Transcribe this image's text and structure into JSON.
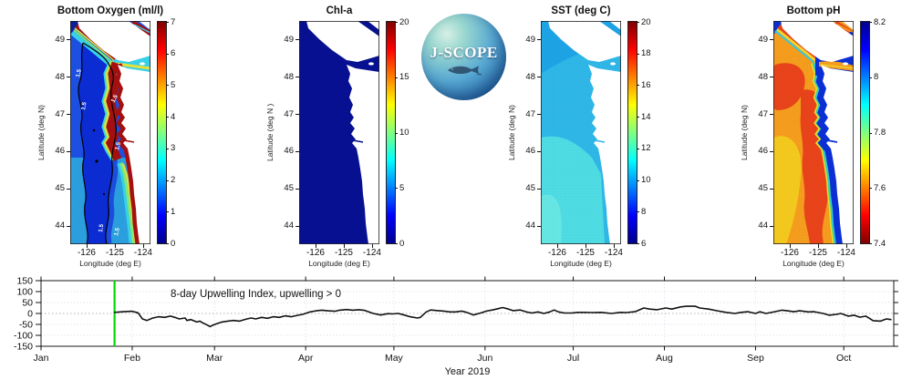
{
  "logo": {
    "label": "J-SCOPE"
  },
  "chart_data": [
    {
      "type": "heatmap",
      "key": "bottom-oxygen",
      "title": "Bottom Oxygen (ml/l)",
      "xlabel": "Longitude (deg E)",
      "ylabel": "Latitude (deg N)",
      "lat_ticks": [
        49,
        48,
        47,
        46,
        45,
        44
      ],
      "lat_range": [
        43.5,
        49.5
      ],
      "lon_ticks": [
        -126,
        -125,
        -124
      ],
      "lon_range": [
        -126.58,
        -123.74
      ],
      "colorbar": {
        "ticks": [
          "7",
          "6",
          "5",
          "4",
          "3",
          "2",
          "1",
          "0"
        ],
        "range": [
          0,
          7
        ],
        "colormap": "jet",
        "orientation": "vertical"
      },
      "contour_level_label": "1.5"
    },
    {
      "type": "heatmap",
      "key": "chl-a",
      "title": "Chl-a",
      "xlabel": "Longitude (deg E)",
      "ylabel": "Latitude (deg N )",
      "lat_ticks": [
        49,
        48,
        47,
        46,
        45,
        44
      ],
      "lat_range": [
        43.5,
        49.5
      ],
      "lon_ticks": [
        -126,
        -125,
        -124
      ],
      "lon_range": [
        -126.58,
        -123.74
      ],
      "colorbar": {
        "ticks": [
          "20",
          "15",
          "10",
          "5",
          "0"
        ],
        "range": [
          0,
          20
        ],
        "colormap": "jet",
        "orientation": "vertical"
      }
    },
    {
      "type": "heatmap",
      "key": "sst",
      "title": "SST (deg C)",
      "xlabel": "Longitude (deg E)",
      "ylabel": "Latitude (deg N)",
      "lat_ticks": [
        49,
        48,
        47,
        46,
        45,
        44
      ],
      "lat_range": [
        43.5,
        49.5
      ],
      "lon_ticks": [
        -126,
        -125,
        -124
      ],
      "lon_range": [
        -126.58,
        -123.74
      ],
      "colorbar": {
        "ticks": [
          "20",
          "18",
          "16",
          "14",
          "12",
          "10",
          "8",
          "6"
        ],
        "range": [
          6,
          20
        ],
        "colormap": "jet",
        "orientation": "vertical"
      }
    },
    {
      "type": "heatmap",
      "key": "bottom-ph",
      "title": "Bottom pH",
      "xlabel": "Longitude (deg E)",
      "ylabel": "Latitude (deg N)",
      "lat_ticks": [
        49,
        48,
        47,
        46,
        45,
        44
      ],
      "lat_range": [
        43.5,
        49.5
      ],
      "lon_ticks": [
        -126,
        -125,
        -124
      ],
      "lon_range": [
        -126.58,
        -123.74
      ],
      "colorbar": {
        "ticks": [
          "8.2",
          "8",
          "7.8",
          "7.6",
          "7.4"
        ],
        "range": [
          7.4,
          8.2
        ],
        "colormap": "jet-reversed",
        "orientation": "vertical"
      }
    },
    {
      "type": "line",
      "key": "upwelling-index",
      "annotation": "8-day Upwelling Index, upwelling > 0",
      "xlabel": "Year 2019",
      "ylim": [
        -150,
        150
      ],
      "y_ticks": [
        150,
        100,
        50,
        0,
        -50,
        -100,
        -150
      ],
      "x_tick_labels": [
        "Jan",
        "Feb",
        "Mar",
        "Apr",
        "May",
        "Jun",
        "Jul",
        "Aug",
        "Sep",
        "Oct"
      ],
      "x_tick_days": [
        1,
        32,
        60,
        91,
        121,
        152,
        182,
        213,
        244,
        274
      ],
      "x_range_days": [
        1,
        291
      ],
      "forecast_start_day": 26,
      "colors": {
        "line": "#111111",
        "forecast_line": "#00d800",
        "grid": "#c9cde3",
        "zero_line": "#999999"
      },
      "points": [
        [
          26,
          5
        ],
        [
          29,
          8
        ],
        [
          32,
          10
        ],
        [
          34,
          3
        ],
        [
          35.5,
          -25
        ],
        [
          37,
          -32
        ],
        [
          39,
          -21
        ],
        [
          41,
          -15
        ],
        [
          43,
          -18
        ],
        [
          45,
          -12
        ],
        [
          46.5,
          -18
        ],
        [
          48,
          -25
        ],
        [
          50,
          -21
        ],
        [
          50.6,
          -32
        ],
        [
          52,
          -28
        ],
        [
          54,
          -39
        ],
        [
          55,
          -35
        ],
        [
          56,
          -43
        ],
        [
          57.5,
          -53
        ],
        [
          58.5,
          -60
        ],
        [
          59.5,
          -53
        ],
        [
          61,
          -46
        ],
        [
          62.5,
          -39
        ],
        [
          64.5,
          -35
        ],
        [
          66.5,
          -32
        ],
        [
          68.5,
          -35
        ],
        [
          71,
          -25
        ],
        [
          72.5,
          -21
        ],
        [
          74,
          -25
        ],
        [
          76,
          -18
        ],
        [
          78,
          -22
        ],
        [
          80,
          -15
        ],
        [
          82,
          -18
        ],
        [
          84,
          -11
        ],
        [
          86,
          -15
        ],
        [
          88.5,
          -8
        ],
        [
          90,
          -4
        ],
        [
          92.5,
          7
        ],
        [
          94.5,
          12
        ],
        [
          96.5,
          15
        ],
        [
          98.5,
          12
        ],
        [
          101,
          10
        ],
        [
          102.5,
          15
        ],
        [
          105,
          18
        ],
        [
          107,
          15
        ],
        [
          109,
          17
        ],
        [
          111,
          14
        ],
        [
          114,
          0
        ],
        [
          116.5,
          -7
        ],
        [
          119,
          -1
        ],
        [
          120.5,
          -2
        ],
        [
          122.5,
          0
        ],
        [
          124.5,
          -7
        ],
        [
          126.5,
          -15
        ],
        [
          129,
          -21
        ],
        [
          130,
          -18
        ],
        [
          132,
          7
        ],
        [
          133.5,
          16
        ],
        [
          136,
          13
        ],
        [
          138,
          11
        ],
        [
          140,
          7
        ],
        [
          142,
          7
        ],
        [
          144,
          11
        ],
        [
          146,
          4
        ],
        [
          148,
          -7
        ],
        [
          150.5,
          2
        ],
        [
          152.5,
          11
        ],
        [
          154.5,
          16
        ],
        [
          156.5,
          22
        ],
        [
          158,
          27
        ],
        [
          160,
          20
        ],
        [
          161.5,
          13
        ],
        [
          164,
          16
        ],
        [
          166,
          7
        ],
        [
          168,
          2
        ],
        [
          170,
          7
        ],
        [
          172,
          0
        ],
        [
          174,
          7
        ],
        [
          175.5,
          16
        ],
        [
          177,
          7
        ],
        [
          179,
          2
        ],
        [
          181.5,
          2
        ],
        [
          183.5,
          5
        ],
        [
          185.5,
          5
        ],
        [
          188.5,
          4
        ],
        [
          191.5,
          5
        ],
        [
          195,
          0
        ],
        [
          198,
          5
        ],
        [
          200,
          4
        ],
        [
          203,
          8
        ],
        [
          206,
          25
        ],
        [
          208,
          20
        ],
        [
          210.5,
          17
        ],
        [
          213.5,
          25
        ],
        [
          215.5,
          20
        ],
        [
          218.5,
          30
        ],
        [
          220.5,
          33
        ],
        [
          223.5,
          33
        ],
        [
          225,
          25
        ],
        [
          228,
          20
        ],
        [
          231,
          12
        ],
        [
          234,
          5
        ],
        [
          237,
          0
        ],
        [
          239,
          5
        ],
        [
          241.5,
          8
        ],
        [
          244,
          0
        ],
        [
          245.5,
          8
        ],
        [
          247.5,
          0
        ],
        [
          250.5,
          8
        ],
        [
          253,
          15
        ],
        [
          254.5,
          13
        ],
        [
          257,
          8
        ],
        [
          259,
          12
        ],
        [
          262,
          7
        ],
        [
          264,
          8
        ],
        [
          267,
          0
        ],
        [
          269,
          -8
        ],
        [
          271.5,
          -4
        ],
        [
          273,
          0
        ],
        [
          275.5,
          -12
        ],
        [
          277.5,
          -8
        ],
        [
          279.5,
          -17
        ],
        [
          281.5,
          -12
        ],
        [
          284,
          -33
        ],
        [
          286.5,
          -35
        ],
        [
          288.5,
          -25
        ],
        [
          290,
          -28
        ]
      ]
    }
  ]
}
